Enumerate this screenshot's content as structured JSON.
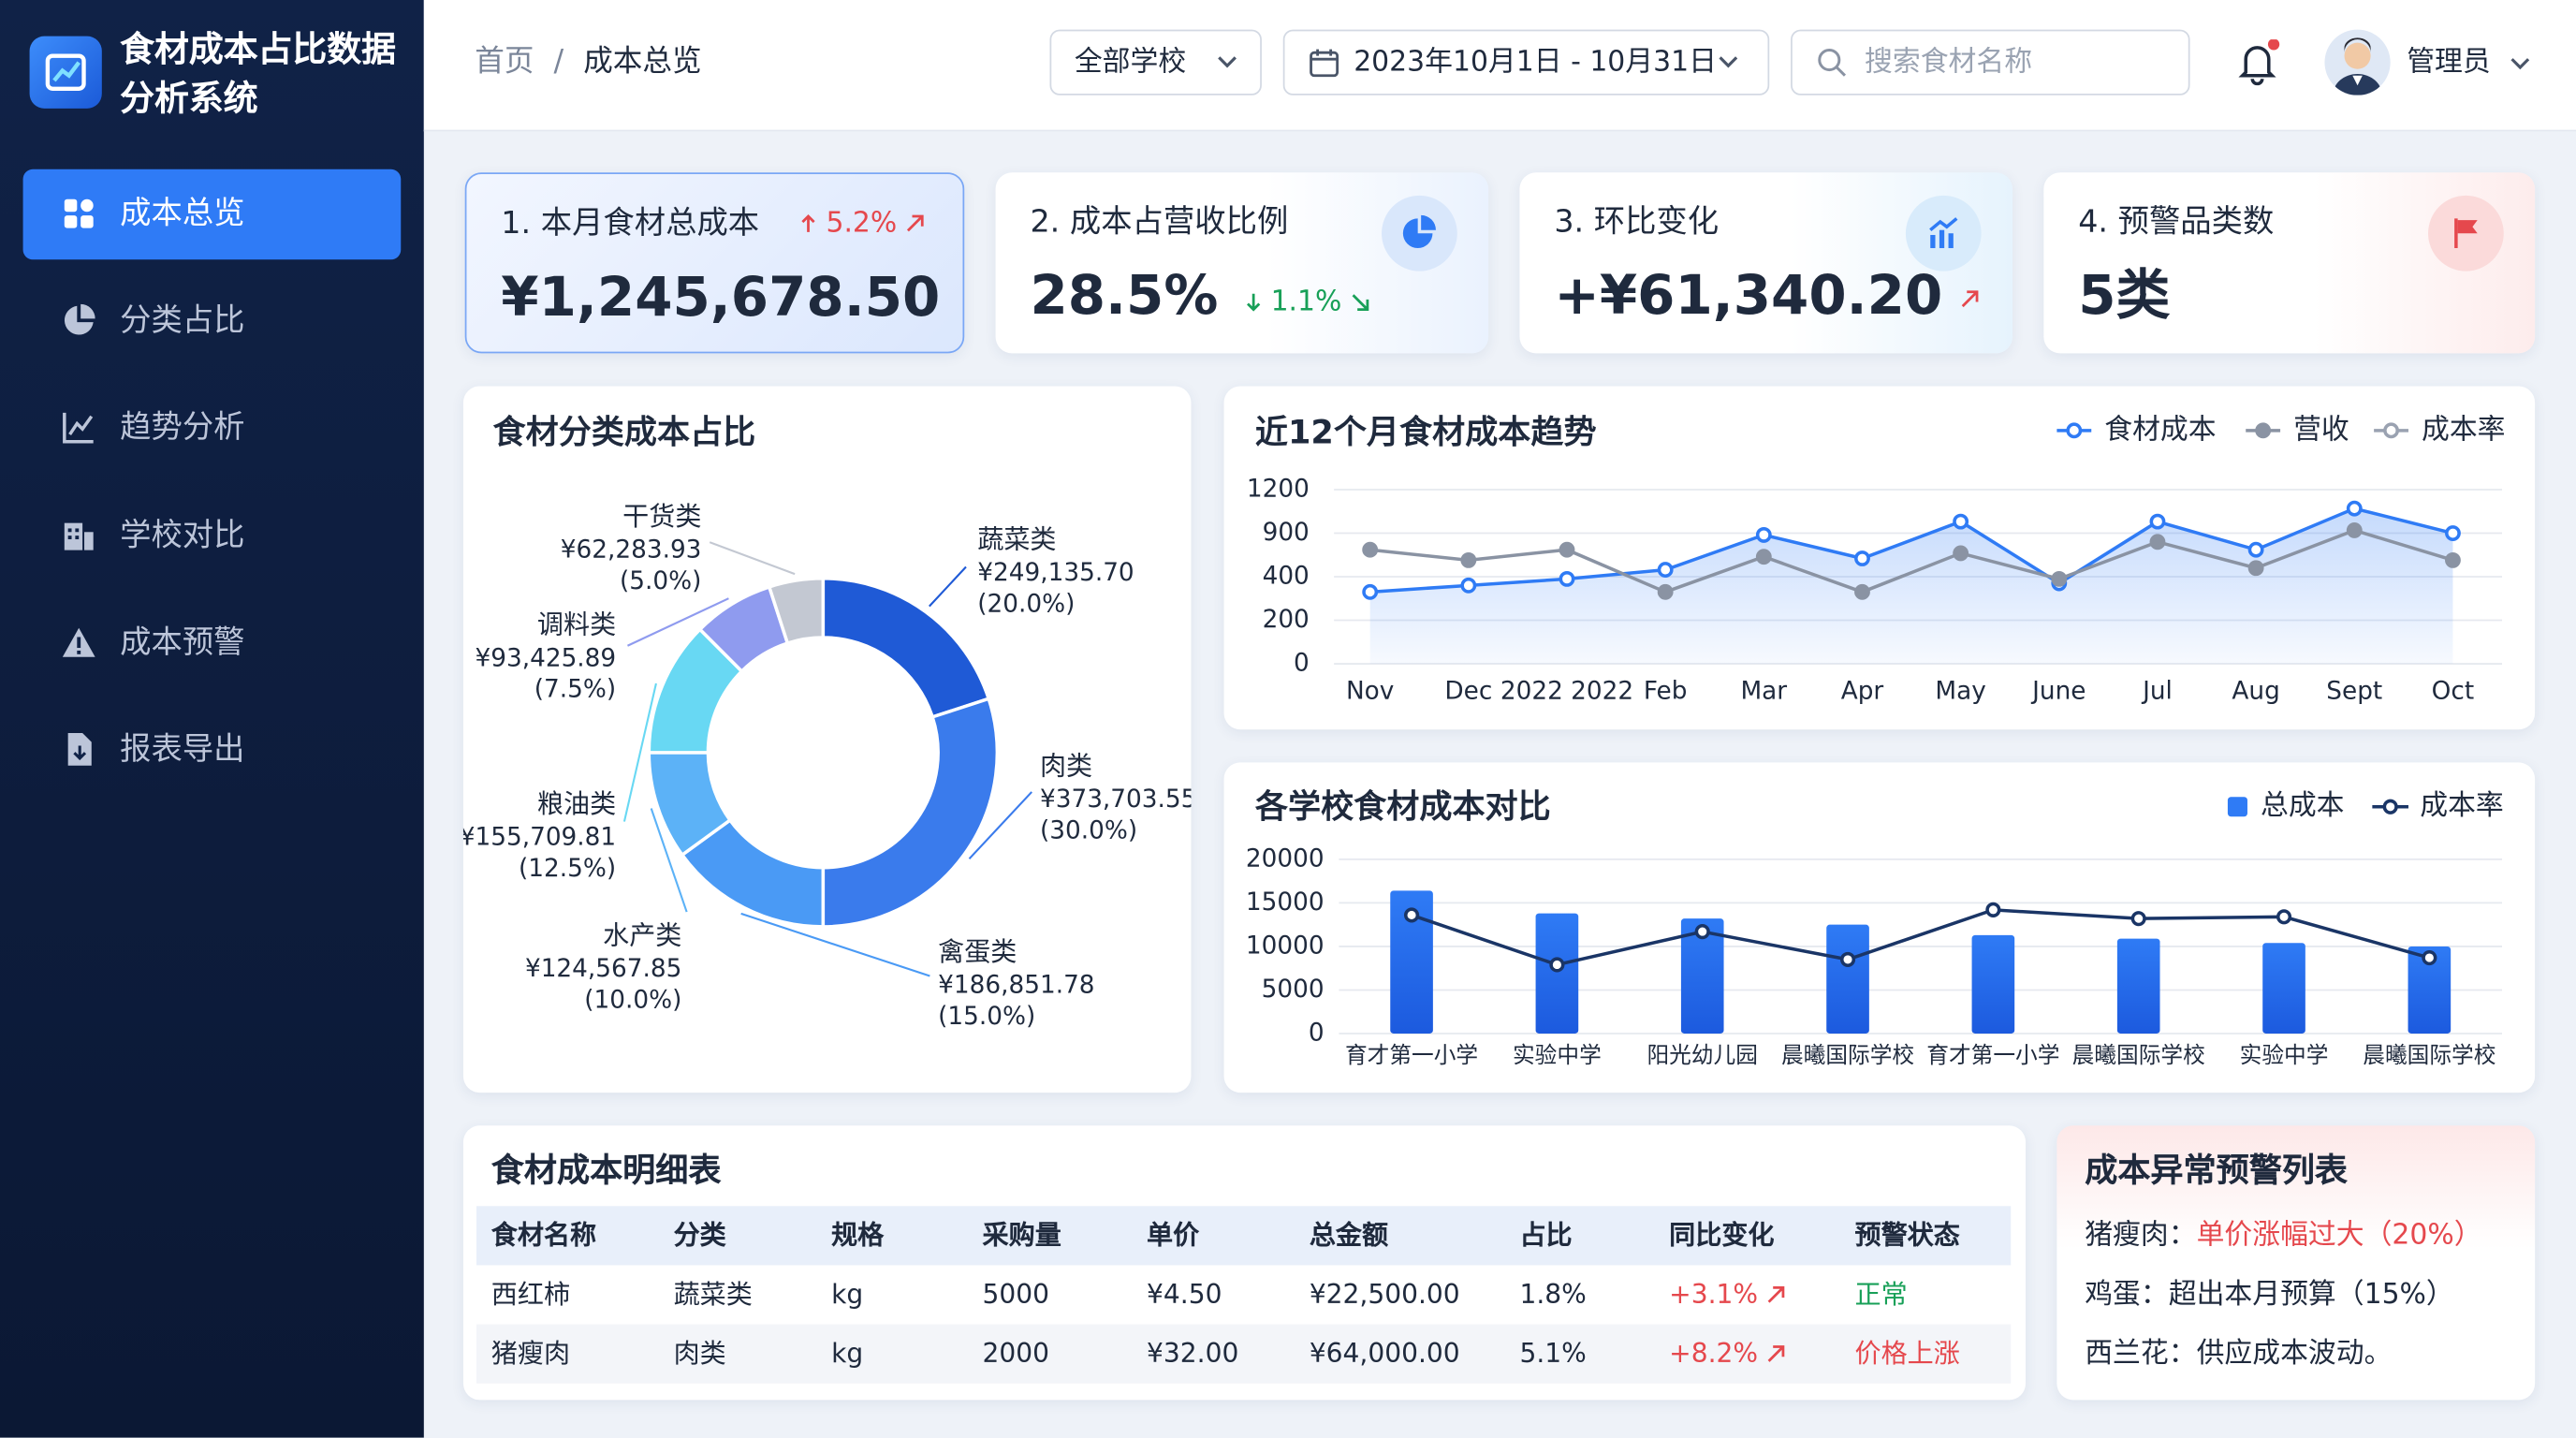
{
  "sidebar": {
    "title": "食材成本占比数据分析系统",
    "menu": [
      "成本总览",
      "分类占比",
      "趋势分析",
      "学校对比",
      "成本预警",
      "报表导出"
    ]
  },
  "header": {
    "breadcrumb": [
      "首页",
      "成本总览"
    ],
    "separator": "/",
    "school_select": "全部学校",
    "date_range": "2023年10月1日 - 10月31日",
    "search_placeholder": "搜索食材名称",
    "user": "管理员"
  },
  "kpis": [
    {
      "title": "1. 本月食材总成本",
      "value": "¥1,245,678.50",
      "change": "5.2%",
      "trend": "up",
      "color": "#e5484d"
    },
    {
      "title": "2. 成本占营收比例",
      "value": "28.5%",
      "change": "1.1%",
      "trend": "down",
      "color": "#18a058"
    },
    {
      "title": "3. 环比变化",
      "value": "+¥61,340.20",
      "trend": "up",
      "color": "#e5484d"
    },
    {
      "title": "4. 预警品类数",
      "value": "5类"
    }
  ],
  "chart_data": [
    {
      "type": "pie",
      "donut": true,
      "title": "食材分类成本占比",
      "categories": [
        "蔬菜类",
        "肉类",
        "禽蛋类",
        "水产类",
        "粮油类",
        "调料类",
        "干货类"
      ],
      "values": [
        249135.7,
        373703.55,
        186851.78,
        124567.85,
        155709.81,
        93425.89,
        62283.93
      ],
      "value_labels": [
        "¥249,135.70",
        "¥373,703.55",
        "¥186,851.78",
        "¥124,567.85",
        "¥155,709.81",
        "¥93,425.89",
        "¥62,283.93"
      ],
      "percent_labels": [
        "(20.0%)",
        "(30.0%)",
        "(15.0%)",
        "(10.0%)",
        "(12.5%)",
        "(7.5%)",
        "(5.0%)"
      ],
      "colors": [
        "#1f5ad6",
        "#3a7bec",
        "#4a9af5",
        "#5cb2f7",
        "#68d8f3",
        "#8f9bef",
        "#c3c8d2"
      ]
    },
    {
      "type": "line",
      "title": "近12个月食材成本趋势",
      "categories": [
        "Nov",
        "Dec",
        "2022 2022",
        "Feb",
        "Mar",
        "Apr",
        "May",
        "June",
        "Jul",
        "Aug",
        "Sept",
        "Oct"
      ],
      "series": [
        {
          "name": "食材成本",
          "color": "#2f7bf5",
          "marker": "hollow",
          "area": true,
          "values": [
            330,
            360,
            390,
            480,
            880,
            610,
            980,
            370,
            980,
            710,
            1070,
            900
          ]
        },
        {
          "name": "营收",
          "color": "#8a93a3",
          "marker": "filled",
          "values": [
            710,
            590,
            710,
            330,
            630,
            330,
            670,
            390,
            800,
            500,
            920,
            590
          ]
        },
        {
          "name": "成本率",
          "color": "#9aa2b1",
          "marker": "hollow",
          "values": [
            null,
            null,
            null,
            null,
            null,
            null,
            null,
            null,
            null,
            null,
            null,
            null
          ]
        }
      ],
      "ylim": [
        0,
        1200
      ],
      "yticks": [
        0,
        200,
        400,
        900,
        1200
      ],
      "grid": true
    },
    {
      "type": "bar",
      "title": "各学校食材成本对比",
      "categories": [
        "育才第一小学",
        "实验中学",
        "阳光幼儿园",
        "晨曦国际学校",
        "育才第一小学",
        "晨曦国际学校",
        "实验中学",
        "晨曦国际学校"
      ],
      "series": [
        {
          "name": "总成本",
          "color": "#2f7bf5",
          "values": [
            16400,
            13800,
            13200,
            12500,
            11300,
            10900,
            10400,
            10000
          ]
        },
        {
          "name": "成本率",
          "color": "#1a3566",
          "type": "line",
          "values": [
            13600,
            7900,
            11700,
            8500,
            14200,
            13200,
            13400,
            8700
          ]
        }
      ],
      "ylim": [
        0,
        20000
      ],
      "yticks": [
        0,
        5000,
        10000,
        15000,
        20000
      ],
      "grid": true
    }
  ],
  "table": {
    "title": "食材成本明细表",
    "columns": [
      "食材名称",
      "分类",
      "规格",
      "采购量",
      "单价",
      "总金额",
      "占比",
      "同比变化",
      "预警状态"
    ],
    "rows": [
      [
        "西红柿",
        "蔬菜类",
        "kg",
        "5000",
        "¥4.50",
        "¥22,500.00",
        "1.8%",
        "+3.1%",
        "正常"
      ],
      [
        "猪瘦肉",
        "肉类",
        "kg",
        "2000",
        "¥32.00",
        "¥64,000.00",
        "5.1%",
        "+8.2%",
        "价格上涨"
      ]
    ],
    "change_color": "#e5484d",
    "status_colors": [
      "#18a058",
      "#e5484d"
    ]
  },
  "alerts": {
    "title": "成本异常预警列表",
    "items": [
      {
        "label": "猪瘦肉：",
        "text": "单价涨幅过大（20%）",
        "color": "#e5484d"
      },
      {
        "label": "鸡蛋：",
        "text": "超出本月预算（15%）",
        "color": "#1f2a3d"
      },
      {
        "label": "西兰花：",
        "text": "供应成本波动。",
        "color": "#1f2a3d"
      }
    ]
  }
}
